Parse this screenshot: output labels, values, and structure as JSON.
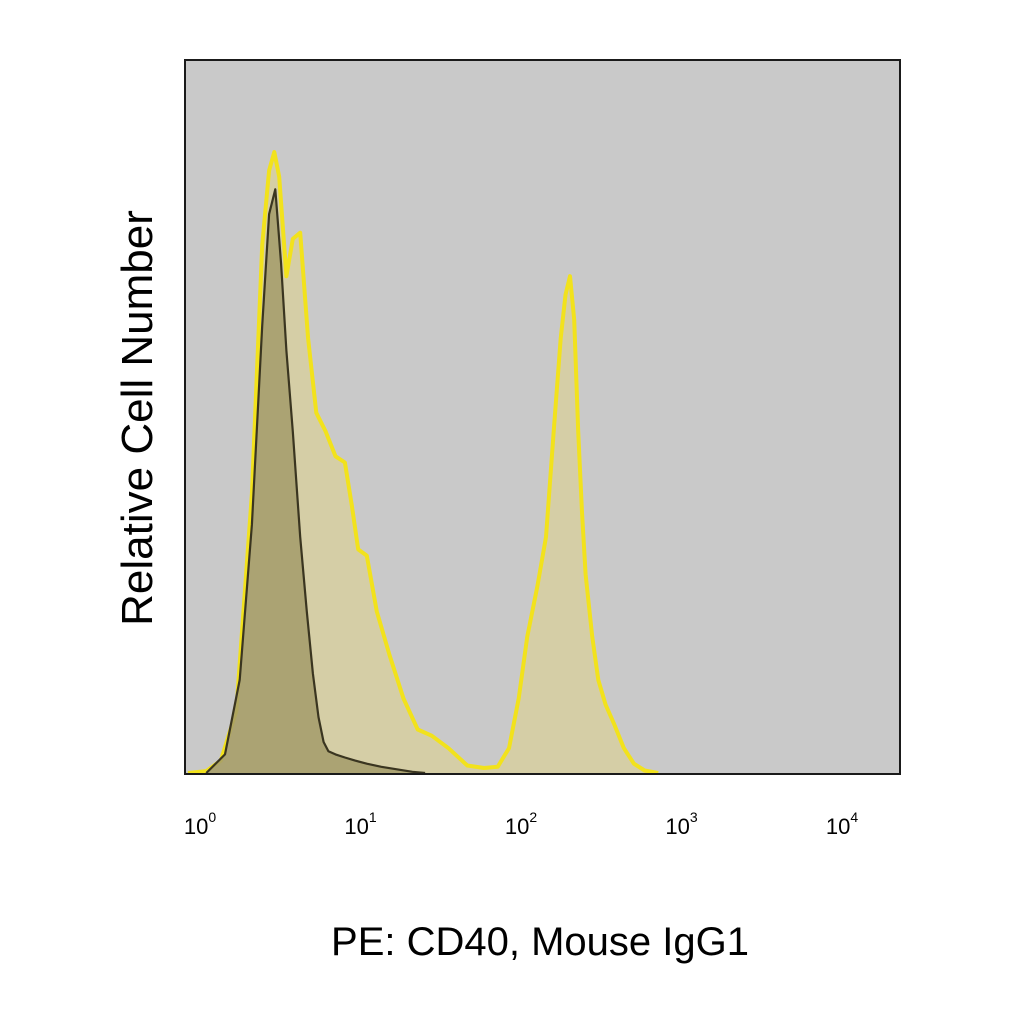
{
  "chart_data": {
    "type": "area",
    "xlabel": "PE: CD40, Mouse IgG1",
    "ylabel": "Relative Cell Number",
    "x_scale": "log",
    "xlim": [
      1,
      10000
    ],
    "ylim": [
      0,
      1
    ],
    "y_ticks_shown": false,
    "grid": false,
    "legend": "none",
    "x_ticks": [
      {
        "base": "10",
        "exp": "0",
        "value": 1
      },
      {
        "base": "10",
        "exp": "1",
        "value": 10
      },
      {
        "base": "10",
        "exp": "2",
        "value": 100
      },
      {
        "base": "10",
        "exp": "3",
        "value": 1000
      },
      {
        "base": "10",
        "exp": "4",
        "value": 10000
      }
    ],
    "colors": {
      "plot_background": "#c9c9c9",
      "stained_line": "#f2e21c",
      "stained_fill": "#d8cf9a",
      "isotype_line": "#3a3520",
      "isotype_fill": "#a39b6a",
      "frame": "#1a1a1a"
    },
    "series": [
      {
        "role": "stained",
        "x": [
          1,
          1.3,
          1.6,
          2.0,
          2.5,
          2.9,
          3.2,
          3.45,
          3.7,
          4.1,
          4.5,
          5.0,
          5.6,
          6.3,
          7.2,
          8.3,
          9.5,
          10.5,
          11.5,
          13,
          15,
          18,
          22,
          27,
          33,
          42,
          55,
          70,
          85,
          100,
          115,
          130,
          150,
          170,
          190,
          210,
          225,
          240,
          255,
          270,
          285,
          300,
          330,
          360,
          400,
          450,
          520,
          600,
          700,
          850
        ],
        "y": [
          0,
          0.003,
          0.02,
          0.1,
          0.45,
          0.85,
          0.97,
          1.0,
          0.96,
          0.8,
          0.86,
          0.87,
          0.7,
          0.58,
          0.55,
          0.51,
          0.5,
          0.43,
          0.36,
          0.35,
          0.26,
          0.19,
          0.12,
          0.07,
          0.06,
          0.04,
          0.012,
          0.008,
          0.01,
          0.04,
          0.12,
          0.22,
          0.3,
          0.38,
          0.55,
          0.7,
          0.77,
          0.8,
          0.73,
          0.55,
          0.42,
          0.32,
          0.22,
          0.15,
          0.11,
          0.08,
          0.04,
          0.015,
          0.004,
          0
        ]
      },
      {
        "role": "isotype",
        "x": [
          1.3,
          1.7,
          2.1,
          2.5,
          2.9,
          3.2,
          3.5,
          3.8,
          4.1,
          4.5,
          5.0,
          5.5,
          6.0,
          6.5,
          7.0,
          7.5,
          8.3,
          9.5,
          11,
          13,
          16,
          20,
          25,
          30
        ],
        "y": [
          0,
          0.03,
          0.15,
          0.4,
          0.72,
          0.9,
          0.94,
          0.82,
          0.68,
          0.55,
          0.38,
          0.26,
          0.16,
          0.09,
          0.05,
          0.035,
          0.03,
          0.025,
          0.02,
          0.015,
          0.01,
          0.006,
          0.002,
          0
        ]
      }
    ]
  }
}
